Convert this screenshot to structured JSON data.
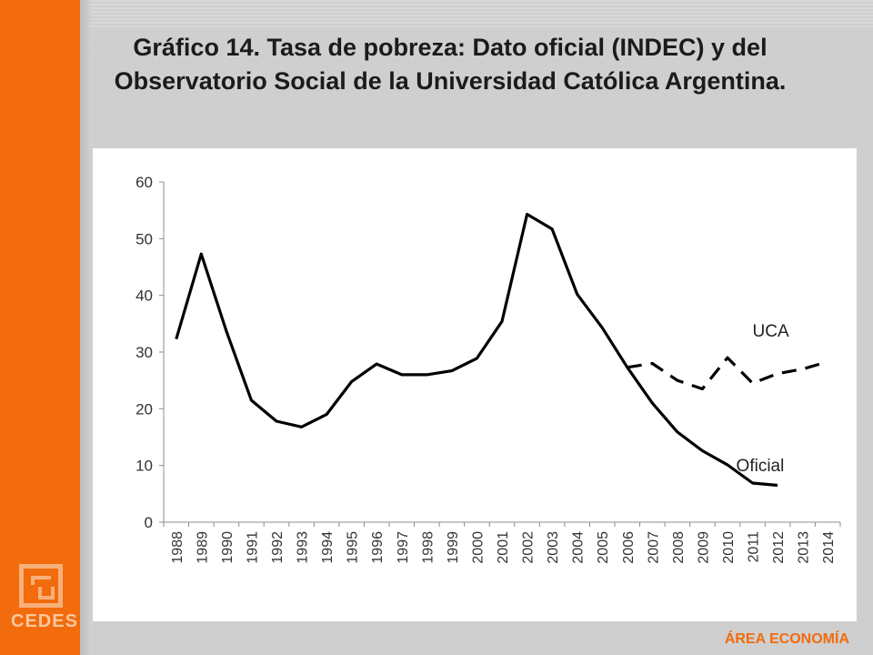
{
  "title": "Gráfico 14. Tasa de pobreza: Dato oficial (INDEC) y del Observatorio Social de la Universidad Católica Argentina.",
  "logo_text": "CEDES",
  "footer_text": "ÁREA ECONOMÍA",
  "colors": {
    "accent": "#f26b0c",
    "background": "#cfcfcf",
    "line": "#000000"
  },
  "chart_data": {
    "type": "line",
    "x": [
      "1988",
      "1989",
      "1990",
      "1991",
      "1992",
      "1993",
      "1994",
      "1995",
      "1996",
      "1997",
      "1998",
      "1999",
      "2000",
      "2001",
      "2002",
      "2003",
      "2004",
      "2005",
      "2006",
      "2007",
      "2008",
      "2009",
      "2010",
      "2011",
      "2012",
      "2013",
      "2014"
    ],
    "ylim": [
      0,
      60
    ],
    "yticks": [
      0,
      10,
      20,
      30,
      40,
      50,
      60
    ],
    "grid": false,
    "series": [
      {
        "name": "Oficial",
        "style": "solid",
        "values": [
          32.3,
          47.3,
          33.7,
          21.5,
          17.8,
          16.8,
          19.0,
          24.8,
          27.9,
          26.0,
          26.0,
          26.7,
          28.9,
          35.4,
          54.3,
          51.7,
          40.2,
          34.3,
          27.3,
          21.0,
          15.9,
          12.6,
          10.1,
          6.9,
          6.5,
          null,
          null
        ]
      },
      {
        "name": "UCA",
        "style": "dashed",
        "values": [
          null,
          null,
          null,
          null,
          null,
          null,
          null,
          null,
          null,
          null,
          null,
          null,
          null,
          null,
          null,
          null,
          null,
          null,
          27.3,
          28.0,
          25.0,
          23.5,
          29.0,
          24.5,
          26.2,
          27.0,
          28.3
        ]
      }
    ]
  }
}
